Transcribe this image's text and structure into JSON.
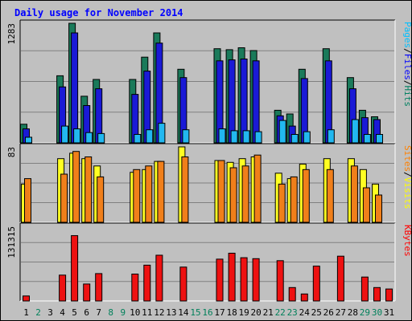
{
  "chart_data": {
    "type": "bar",
    "title": "Daily usage for November 2014",
    "categories": [
      "1",
      "2",
      "3",
      "4",
      "5",
      "6",
      "7",
      "8",
      "9",
      "10",
      "11",
      "12",
      "13",
      "14",
      "15",
      "16",
      "17",
      "18",
      "19",
      "20",
      "21",
      "22",
      "23",
      "24",
      "25",
      "26",
      "27",
      "28",
      "29",
      "30",
      "31"
    ],
    "weekend_days": [
      "2",
      "8",
      "9",
      "15",
      "16",
      "22",
      "23",
      "29",
      "30"
    ],
    "panels": [
      {
        "name": "hits-files-pages",
        "side_label": [
          "Pages",
          "/",
          "Files",
          "/",
          "Hits"
        ],
        "side_colors": [
          "#00c0ff",
          "#000000",
          "#0000ff",
          "#000000",
          "#008060"
        ],
        "y_tick_label": "1283",
        "ymax": 1283,
        "series": [
          {
            "name": "Hits",
            "color": "#1a7a5a",
            "values": [
              200,
              0,
              0,
              720,
              1283,
              500,
              680,
              0,
              0,
              680,
              920,
              1180,
              0,
              790,
              0,
              0,
              1010,
              1000,
              1020,
              990,
              0,
              350,
              310,
              790,
              0,
              1010,
              0,
              700,
              350,
              280,
              0
            ]
          },
          {
            "name": "Files",
            "color": "#1a1ad6",
            "values": [
              150,
              0,
              0,
              600,
              1180,
              400,
              580,
              0,
              0,
              520,
              770,
              1070,
              0,
              700,
              0,
              0,
              880,
              890,
              900,
              880,
              0,
              290,
              180,
              690,
              0,
              880,
              0,
              580,
              270,
              250,
              0
            ]
          },
          {
            "name": "Pages",
            "color": "#22b8f0",
            "values": [
              60,
              0,
              0,
              180,
              150,
              110,
              100,
              0,
              0,
              90,
              140,
              210,
              0,
              140,
              0,
              0,
              150,
              130,
              130,
              120,
              0,
              240,
              90,
              120,
              0,
              140,
              0,
              250,
              90,
              90,
              0
            ]
          }
        ]
      },
      {
        "name": "visits-sites",
        "side_label": [
          "Sites",
          "/",
          "Visits"
        ],
        "side_colors": [
          "#ff8000",
          "#000000",
          "#ffff00"
        ],
        "y_tick_label": "83",
        "ymax": 83,
        "series": [
          {
            "name": "Visits",
            "color": "#ffff22",
            "values": [
              42,
              0,
              0,
              70,
              76,
              70,
              62,
              0,
              0,
              55,
              58,
              67,
              0,
              83,
              0,
              0,
              68,
              66,
              70,
              72,
              0,
              54,
              48,
              64,
              0,
              70,
              0,
              70,
              58,
              42,
              0
            ]
          },
          {
            "name": "Sites",
            "color": "#f07f1a",
            "values": [
              48,
              0,
              0,
              53,
              78,
              72,
              50,
              0,
              0,
              58,
              62,
              67,
              0,
              72,
              0,
              0,
              68,
              60,
              62,
              74,
              0,
              42,
              50,
              58,
              0,
              58,
              0,
              62,
              38,
              30,
              0
            ]
          }
        ]
      },
      {
        "name": "kbytes",
        "side_label": [
          "KBytes"
        ],
        "side_colors": [
          "#ff0000"
        ],
        "y_tick_label": "131315",
        "ymax": 150000,
        "series": [
          {
            "name": "KBytes",
            "color": "#ee1111",
            "values": [
              10000,
              0,
              0,
              52000,
              131315,
              34000,
              55000,
              0,
              0,
              54000,
              72000,
              92000,
              0,
              68000,
              0,
              0,
              84000,
              96000,
              87000,
              85000,
              0,
              81000,
              27000,
              14000,
              70000,
              0,
              90000,
              0,
              48000,
              27000,
              24000
            ]
          }
        ]
      }
    ]
  }
}
